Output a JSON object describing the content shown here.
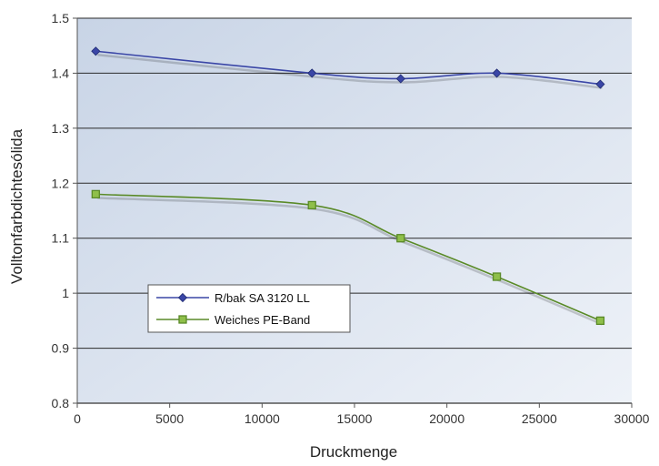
{
  "chart_data": {
    "type": "line",
    "xlabel": "Druckmenge",
    "ylabel": "Volltonfarbdichtesólida",
    "xlim": [
      0,
      30000
    ],
    "ylim": [
      0.8,
      1.5
    ],
    "x_ticks": [
      "0",
      "5000",
      "10000",
      "15000",
      "20000",
      "25000",
      "30000"
    ],
    "y_ticks": [
      "0.8",
      "0.9",
      "1",
      "1.1",
      "1.2",
      "1.3",
      "1.4",
      "1.5"
    ],
    "grid": "horizontal",
    "legend_position": "lower-left",
    "series": [
      {
        "name": "R/bak SA 3120 LL",
        "color": "#3a46a6",
        "marker": "diamond",
        "smooth": true,
        "x": [
          1000,
          12700,
          17500,
          22700,
          28300
        ],
        "y": [
          1.44,
          1.4,
          1.39,
          1.4,
          1.38
        ]
      },
      {
        "name": "Weiches PE-Band",
        "color": "#5a8a28",
        "marker": "square",
        "smooth": true,
        "x": [
          1000,
          12700,
          17500,
          22700,
          28300
        ],
        "y": [
          1.18,
          1.16,
          1.1,
          1.03,
          0.95
        ]
      }
    ]
  }
}
